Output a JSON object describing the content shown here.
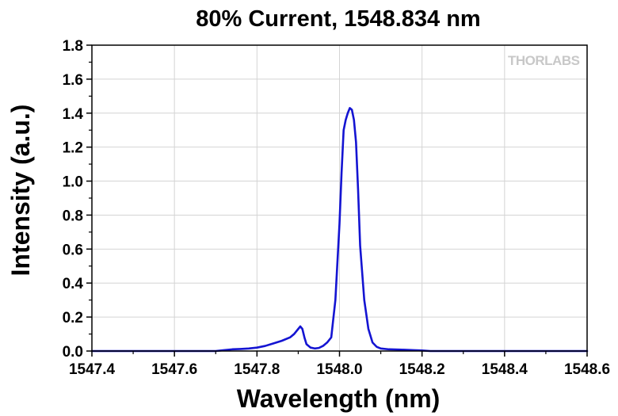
{
  "chart_data": {
    "type": "line",
    "title": "80% Current, 1548.834 nm",
    "xlabel": "Wavelength (nm)",
    "ylabel": "Intensity (a.u.)",
    "xlim": [
      1547.4,
      1548.6
    ],
    "ylim": [
      0.0,
      1.8
    ],
    "xticks": [
      "1547.4",
      "1547.6",
      "1547.8",
      "1548.0",
      "1548.2",
      "1548.4",
      "1548.6"
    ],
    "yticks": [
      "0.0",
      "0.2",
      "0.4",
      "0.6",
      "0.8",
      "1.0",
      "1.2",
      "1.4",
      "1.6",
      "1.8"
    ],
    "grid": true,
    "legend": "none",
    "watermark": "THORLABS",
    "series": [
      {
        "color": "#1414d2",
        "x": [
          1547.4,
          1547.7,
          1547.72,
          1547.74,
          1547.76,
          1547.78,
          1547.8,
          1547.82,
          1547.84,
          1547.86,
          1547.88,
          1547.89,
          1547.9,
          1547.905,
          1547.91,
          1547.915,
          1547.92,
          1547.93,
          1547.94,
          1547.95,
          1547.96,
          1547.97,
          1547.98,
          1547.99,
          1548.0,
          1548.005,
          1548.01,
          1548.015,
          1548.02,
          1548.025,
          1548.03,
          1548.035,
          1548.04,
          1548.045,
          1548.05,
          1548.06,
          1548.07,
          1548.08,
          1548.09,
          1548.1,
          1548.12,
          1548.15,
          1548.18,
          1548.2,
          1548.22,
          1548.3,
          1548.6
        ],
        "y": [
          0.0,
          0.0,
          0.005,
          0.01,
          0.012,
          0.015,
          0.02,
          0.03,
          0.045,
          0.06,
          0.08,
          0.1,
          0.13,
          0.145,
          0.13,
          0.08,
          0.04,
          0.02,
          0.015,
          0.018,
          0.03,
          0.05,
          0.08,
          0.3,
          0.75,
          1.05,
          1.3,
          1.36,
          1.4,
          1.43,
          1.42,
          1.36,
          1.23,
          0.95,
          0.62,
          0.3,
          0.13,
          0.05,
          0.025,
          0.015,
          0.01,
          0.008,
          0.005,
          0.003,
          0.0,
          0.0,
          0.0
        ]
      }
    ]
  }
}
